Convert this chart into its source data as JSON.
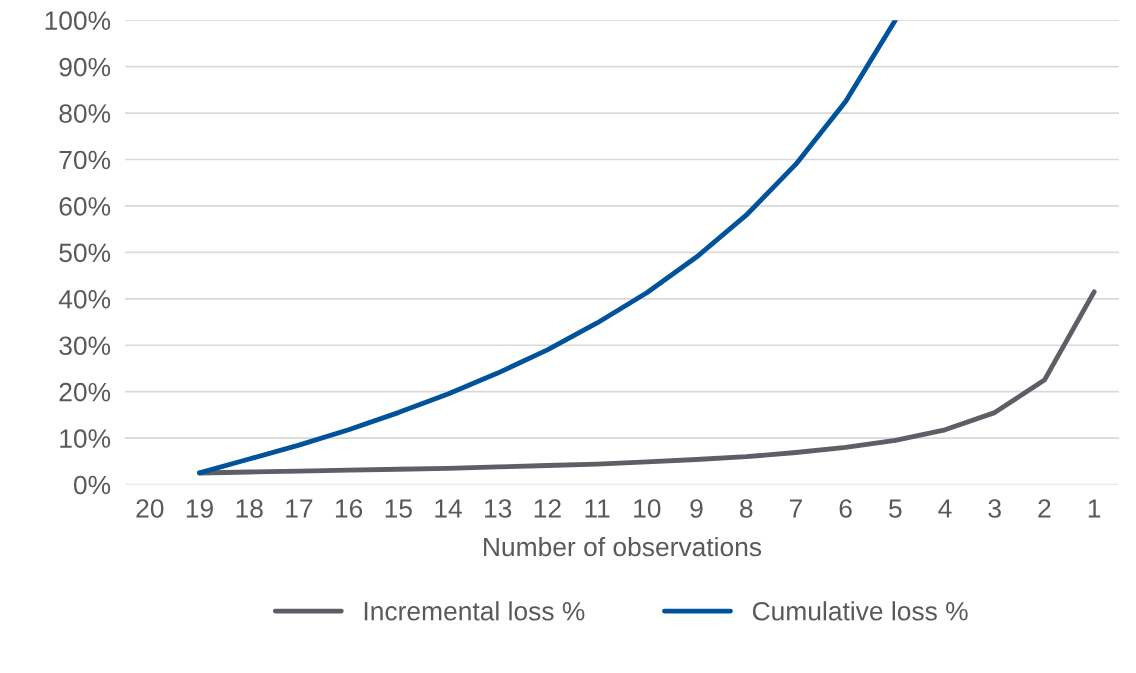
{
  "chart_data": {
    "type": "line",
    "xlabel": "Number of observations",
    "categories": [
      "20",
      "19",
      "18",
      "17",
      "16",
      "15",
      "14",
      "13",
      "12",
      "11",
      "10",
      "9",
      "8",
      "7",
      "6",
      "5",
      "4",
      "3",
      "2",
      "1"
    ],
    "series": [
      {
        "name": "Incremental loss %",
        "color": "#5f5e66",
        "values": [
          null,
          2.5,
          2.7,
          2.9,
          3.1,
          3.3,
          3.5,
          3.8,
          4.1,
          4.4,
          4.9,
          5.4,
          6.0,
          6.9,
          8.0,
          9.5,
          11.8,
          15.5,
          22.5,
          41.5
        ]
      },
      {
        "name": "Cumulative loss %",
        "color": "#00539b",
        "values": [
          null,
          2.5,
          5.5,
          8.5,
          11.8,
          15.5,
          19.5,
          24,
          29,
          34.8,
          41.3,
          49,
          58,
          69,
          82.5,
          100,
          null,
          null,
          null,
          null
        ]
      }
    ],
    "ylim": [
      0,
      100
    ],
    "yticks": [
      {
        "value": 0,
        "label": "0%"
      },
      {
        "value": 10,
        "label": "10%"
      },
      {
        "value": 20,
        "label": "20%"
      },
      {
        "value": 30,
        "label": "30%"
      },
      {
        "value": 40,
        "label": "40%"
      },
      {
        "value": 50,
        "label": "50%"
      },
      {
        "value": 60,
        "label": "60%"
      },
      {
        "value": 70,
        "label": "70%"
      },
      {
        "value": 80,
        "label": "80%"
      },
      {
        "value": 90,
        "label": "90%"
      },
      {
        "value": 100,
        "label": "100%"
      }
    ],
    "grid": "y",
    "legend": "bottom",
    "line_style": "solid",
    "marker": "none"
  }
}
